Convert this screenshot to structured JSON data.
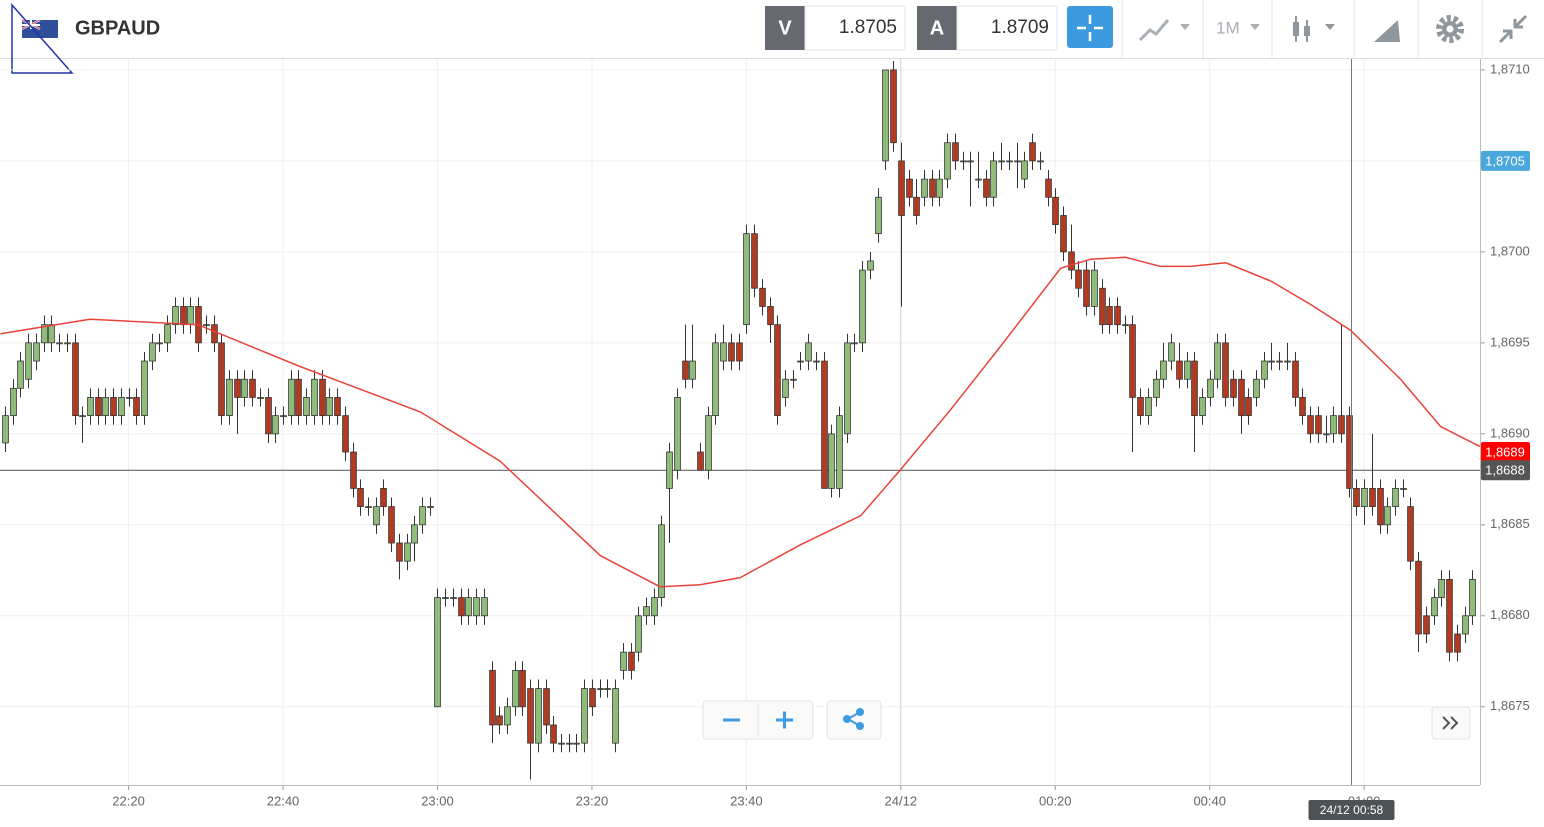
{
  "header": {
    "symbol": "GBPAUD",
    "bid_label": "V",
    "bid": "1.8705",
    "ask_label": "A",
    "ask": "1.8709",
    "timeframe": "1M"
  },
  "chart_data": {
    "type": "candlestick",
    "up_color": "#8fbd78",
    "down_color": "#b23a20",
    "candles": [
      [
        1.86895,
        1.86915,
        1.8689,
        1.8691
      ],
      [
        1.8691,
        1.8693,
        1.86905,
        1.86925
      ],
      [
        1.86925,
        1.86945,
        1.8692,
        1.8694
      ],
      [
        1.8693,
        1.86955,
        1.86925,
        1.8695
      ],
      [
        1.8694,
        1.86955,
        1.86935,
        1.8695
      ],
      [
        1.8695,
        1.86965,
        1.86945,
        1.8696
      ],
      [
        1.8695,
        1.86965,
        1.86945,
        1.8696
      ],
      [
        1.8695,
        1.86955,
        1.86945,
        1.8695
      ],
      [
        1.8695,
        1.86955,
        1.86945,
        1.8695
      ],
      [
        1.8695,
        1.86955,
        1.86905,
        1.8691
      ],
      [
        1.8691,
        1.86915,
        1.86895,
        1.8691
      ],
      [
        1.8691,
        1.86925,
        1.86905,
        1.8692
      ],
      [
        1.8692,
        1.86925,
        1.86905,
        1.8691
      ],
      [
        1.8691,
        1.86925,
        1.86905,
        1.8692
      ],
      [
        1.8692,
        1.86925,
        1.86905,
        1.8691
      ],
      [
        1.8691,
        1.86925,
        1.86905,
        1.8692
      ],
      [
        1.8692,
        1.86925,
        1.86915,
        1.8692
      ],
      [
        1.8692,
        1.86925,
        1.86905,
        1.8691
      ],
      [
        1.8691,
        1.86945,
        1.86905,
        1.8694
      ],
      [
        1.8694,
        1.86955,
        1.86935,
        1.8695
      ],
      [
        1.8695,
        1.86955,
        1.86945,
        1.8695
      ],
      [
        1.8695,
        1.86965,
        1.86945,
        1.8696
      ],
      [
        1.8696,
        1.86975,
        1.86955,
        1.8697
      ],
      [
        1.8697,
        1.86975,
        1.86955,
        1.8696
      ],
      [
        1.8696,
        1.86975,
        1.86955,
        1.8697
      ],
      [
        1.8697,
        1.86975,
        1.86945,
        1.8695
      ],
      [
        1.8696,
        1.86965,
        1.86955,
        1.8696
      ],
      [
        1.8696,
        1.86965,
        1.86945,
        1.8695
      ],
      [
        1.8695,
        1.86955,
        1.86905,
        1.8691
      ],
      [
        1.8691,
        1.86935,
        1.86905,
        1.8693
      ],
      [
        1.8693,
        1.86935,
        1.869,
        1.8692
      ],
      [
        1.8692,
        1.86935,
        1.86915,
        1.8693
      ],
      [
        1.8693,
        1.86935,
        1.86915,
        1.8692
      ],
      [
        1.8692,
        1.86925,
        1.86915,
        1.8692
      ],
      [
        1.8692,
        1.86925,
        1.86895,
        1.869
      ],
      [
        1.869,
        1.86915,
        1.86895,
        1.8691
      ],
      [
        1.8691,
        1.86915,
        1.86905,
        1.8691
      ],
      [
        1.8691,
        1.86935,
        1.86905,
        1.8693
      ],
      [
        1.8693,
        1.86935,
        1.86905,
        1.8691
      ],
      [
        1.8691,
        1.86925,
        1.86905,
        1.8692
      ],
      [
        1.8691,
        1.86935,
        1.86905,
        1.8693
      ],
      [
        1.8693,
        1.86935,
        1.86905,
        1.8691
      ],
      [
        1.8691,
        1.86925,
        1.86905,
        1.8692
      ],
      [
        1.8692,
        1.86925,
        1.86905,
        1.8691
      ],
      [
        1.8691,
        1.86915,
        1.86885,
        1.8689
      ],
      [
        1.8689,
        1.86895,
        1.86865,
        1.8687
      ],
      [
        1.8687,
        1.86875,
        1.86855,
        1.8686
      ],
      [
        1.8686,
        1.86865,
        1.86855,
        1.8686
      ],
      [
        1.8685,
        1.86865,
        1.86845,
        1.8686
      ],
      [
        1.8687,
        1.86875,
        1.86855,
        1.8686
      ],
      [
        1.8686,
        1.86865,
        1.86835,
        1.8684
      ],
      [
        1.8684,
        1.86845,
        1.8682,
        1.8683
      ],
      [
        1.8683,
        1.86845,
        1.86825,
        1.8684
      ],
      [
        1.8684,
        1.86855,
        1.8683,
        1.8685
      ],
      [
        1.8685,
        1.86865,
        1.86845,
        1.8686
      ],
      [
        1.8686,
        1.86865,
        1.86855,
        1.8686
      ],
      [
        1.8675,
        1.86815,
        1.8675,
        1.8681
      ],
      [
        1.8681,
        1.86815,
        1.86805,
        1.8681
      ],
      [
        1.8681,
        1.86815,
        1.86805,
        1.8681
      ],
      [
        1.8681,
        1.86815,
        1.86795,
        1.868
      ],
      [
        1.868,
        1.86815,
        1.86795,
        1.8681
      ],
      [
        1.868,
        1.86815,
        1.86795,
        1.8681
      ],
      [
        1.868,
        1.86815,
        1.86795,
        1.8681
      ],
      [
        1.8677,
        1.86775,
        1.8673,
        1.8674
      ],
      [
        1.86745,
        1.8675,
        1.86735,
        1.8674
      ],
      [
        1.8674,
        1.86755,
        1.86735,
        1.8675
      ],
      [
        1.8675,
        1.86775,
        1.86745,
        1.8677
      ],
      [
        1.8677,
        1.86775,
        1.86745,
        1.8675
      ],
      [
        1.8676,
        1.86765,
        1.8671,
        1.8673
      ],
      [
        1.8673,
        1.86765,
        1.86725,
        1.8676
      ],
      [
        1.8676,
        1.86765,
        1.86735,
        1.8674
      ],
      [
        1.8674,
        1.86745,
        1.86725,
        1.8673
      ],
      [
        1.8673,
        1.86735,
        1.86725,
        1.8673
      ],
      [
        1.8673,
        1.86735,
        1.86725,
        1.8673
      ],
      [
        1.8673,
        1.86735,
        1.86725,
        1.8673
      ],
      [
        1.8673,
        1.86765,
        1.86725,
        1.8676
      ],
      [
        1.8676,
        1.86765,
        1.86745,
        1.8675
      ],
      [
        1.8676,
        1.86765,
        1.86755,
        1.8676
      ],
      [
        1.8676,
        1.86765,
        1.86755,
        1.8676
      ],
      [
        1.8673,
        1.86765,
        1.86725,
        1.8676
      ],
      [
        1.8677,
        1.86785,
        1.86765,
        1.8678
      ],
      [
        1.8678,
        1.86785,
        1.86765,
        1.8677
      ],
      [
        1.8678,
        1.86805,
        1.86775,
        1.868
      ],
      [
        1.868,
        1.8681,
        1.86795,
        1.86805
      ],
      [
        1.868,
        1.86815,
        1.86795,
        1.8681
      ],
      [
        1.8681,
        1.86855,
        1.86805,
        1.8685
      ],
      [
        1.8687,
        1.86895,
        1.8684,
        1.8689
      ],
      [
        1.8688,
        1.86925,
        1.86875,
        1.8692
      ],
      [
        1.8694,
        1.8696,
        1.86925,
        1.8693
      ],
      [
        1.8693,
        1.8696,
        1.86925,
        1.8694
      ],
      [
        1.8689,
        1.86895,
        1.8688,
        1.8688
      ],
      [
        1.8688,
        1.86915,
        1.86875,
        1.8691
      ],
      [
        1.8691,
        1.86955,
        1.86905,
        1.8695
      ],
      [
        1.8694,
        1.8696,
        1.86935,
        1.8695
      ],
      [
        1.8695,
        1.86955,
        1.86935,
        1.8694
      ],
      [
        1.8695,
        1.86955,
        1.86935,
        1.8694
      ],
      [
        1.8696,
        1.87015,
        1.86955,
        1.8701
      ],
      [
        1.8701,
        1.87015,
        1.86975,
        1.8698
      ],
      [
        1.8698,
        1.86985,
        1.86965,
        1.8697
      ],
      [
        1.8697,
        1.86975,
        1.8695,
        1.8696
      ],
      [
        1.8696,
        1.86965,
        1.86905,
        1.8691
      ],
      [
        1.8692,
        1.86935,
        1.86915,
        1.8693
      ],
      [
        1.8693,
        1.86935,
        1.86925,
        1.8693
      ],
      [
        1.8694,
        1.86945,
        1.86935,
        1.8694
      ],
      [
        1.8694,
        1.86955,
        1.86935,
        1.8695
      ],
      [
        1.8694,
        1.86945,
        1.86935,
        1.8694
      ],
      [
        1.8694,
        1.86945,
        1.8687,
        1.8687
      ],
      [
        1.8687,
        1.86905,
        1.86865,
        1.869
      ],
      [
        1.8687,
        1.86915,
        1.86865,
        1.8691
      ],
      [
        1.869,
        1.86955,
        1.86895,
        1.8695
      ],
      [
        1.8695,
        1.86955,
        1.86945,
        1.8695
      ],
      [
        1.8695,
        1.86995,
        1.86945,
        1.8699
      ],
      [
        1.8699,
        1.87,
        1.86985,
        1.86995
      ],
      [
        1.8701,
        1.87035,
        1.87005,
        1.8703
      ],
      [
        1.8705,
        1.871,
        1.87045,
        1.871
      ],
      [
        1.871,
        1.87105,
        1.87055,
        1.8706
      ],
      [
        1.8705,
        1.8706,
        1.8697,
        1.8702
      ],
      [
        1.8704,
        1.87045,
        1.87025,
        1.8703
      ],
      [
        1.8703,
        1.8704,
        1.87015,
        1.8702
      ],
      [
        1.8703,
        1.87045,
        1.87025,
        1.8704
      ],
      [
        1.8704,
        1.87045,
        1.87025,
        1.8703
      ],
      [
        1.8703,
        1.87045,
        1.87025,
        1.8704
      ],
      [
        1.8704,
        1.87065,
        1.87035,
        1.8706
      ],
      [
        1.8706,
        1.87065,
        1.87045,
        1.8705
      ],
      [
        1.8705,
        1.87055,
        1.87045,
        1.8705
      ],
      [
        1.8705,
        1.87055,
        1.87025,
        1.8705
      ],
      [
        1.8704,
        1.87055,
        1.87035,
        1.8704
      ],
      [
        1.8704,
        1.87045,
        1.87025,
        1.8703
      ],
      [
        1.8703,
        1.87055,
        1.87025,
        1.8705
      ],
      [
        1.8705,
        1.8706,
        1.87045,
        1.8705
      ],
      [
        1.8705,
        1.87055,
        1.87045,
        1.8705
      ],
      [
        1.8705,
        1.8706,
        1.87035,
        1.8705
      ],
      [
        1.8704,
        1.87055,
        1.87035,
        1.8705
      ],
      [
        1.8706,
        1.87065,
        1.87045,
        1.8705
      ],
      [
        1.8705,
        1.87055,
        1.87045,
        1.8705
      ],
      [
        1.8704,
        1.87045,
        1.87025,
        1.8703
      ],
      [
        1.8703,
        1.87035,
        1.8701,
        1.87015
      ],
      [
        1.8702,
        1.87025,
        1.86995,
        1.87
      ],
      [
        1.87,
        1.87015,
        1.86985,
        1.8699
      ],
      [
        1.8699,
        1.86995,
        1.86975,
        1.8698
      ],
      [
        1.8699,
        1.86995,
        1.86965,
        1.8697
      ],
      [
        1.8697,
        1.86995,
        1.86965,
        1.8699
      ],
      [
        1.8698,
        1.86985,
        1.86955,
        1.8696
      ],
      [
        1.8697,
        1.86975,
        1.86955,
        1.8696
      ],
      [
        1.8697,
        1.86975,
        1.86955,
        1.8696
      ],
      [
        1.8696,
        1.86965,
        1.86955,
        1.8696
      ],
      [
        1.8696,
        1.86965,
        1.8689,
        1.8692
      ],
      [
        1.8692,
        1.86925,
        1.86905,
        1.8691
      ],
      [
        1.8691,
        1.86925,
        1.86905,
        1.8692
      ],
      [
        1.8692,
        1.86935,
        1.86915,
        1.8693
      ],
      [
        1.8693,
        1.8695,
        1.86925,
        1.8694
      ],
      [
        1.8694,
        1.86955,
        1.86935,
        1.8695
      ],
      [
        1.8694,
        1.8695,
        1.86925,
        1.8693
      ],
      [
        1.8693,
        1.86945,
        1.86925,
        1.8694
      ],
      [
        1.8694,
        1.86945,
        1.8689,
        1.8691
      ],
      [
        1.8691,
        1.86925,
        1.86905,
        1.8692
      ],
      [
        1.8692,
        1.86935,
        1.86915,
        1.8693
      ],
      [
        1.8693,
        1.86955,
        1.86925,
        1.8695
      ],
      [
        1.8695,
        1.86955,
        1.86915,
        1.8692
      ],
      [
        1.8693,
        1.86935,
        1.86915,
        1.8692
      ],
      [
        1.8693,
        1.86935,
        1.869,
        1.8691
      ],
      [
        1.8692,
        1.86925,
        1.86905,
        1.8691
      ],
      [
        1.8692,
        1.86935,
        1.86915,
        1.8693
      ],
      [
        1.8693,
        1.86945,
        1.86925,
        1.8694
      ],
      [
        1.8694,
        1.8695,
        1.86935,
        1.8694
      ],
      [
        1.8694,
        1.86945,
        1.86935,
        1.8694
      ],
      [
        1.8694,
        1.8695,
        1.86935,
        1.8694
      ],
      [
        1.8694,
        1.86945,
        1.86915,
        1.8692
      ],
      [
        1.8692,
        1.86925,
        1.86905,
        1.8691
      ],
      [
        1.8691,
        1.86915,
        1.86895,
        1.869
      ],
      [
        1.8691,
        1.86915,
        1.86895,
        1.869
      ],
      [
        1.869,
        1.8691,
        1.86895,
        1.869
      ],
      [
        1.869,
        1.86915,
        1.86895,
        1.8691
      ],
      [
        1.8691,
        1.8696,
        1.86895,
        1.869
      ],
      [
        1.8691,
        1.86915,
        1.86865,
        1.8687
      ],
      [
        1.8687,
        1.86875,
        1.86855,
        1.8686
      ],
      [
        1.8686,
        1.86875,
        1.8685,
        1.8687
      ],
      [
        1.8687,
        1.869,
        1.86855,
        1.8686
      ],
      [
        1.8687,
        1.86875,
        1.86845,
        1.8685
      ],
      [
        1.8685,
        1.86865,
        1.86845,
        1.8686
      ],
      [
        1.8686,
        1.86875,
        1.86855,
        1.8687
      ],
      [
        1.8687,
        1.86875,
        1.86865,
        1.8687
      ],
      [
        1.8686,
        1.86865,
        1.86825,
        1.8683
      ],
      [
        1.8683,
        1.86835,
        1.8678,
        1.8679
      ],
      [
        1.868,
        1.86805,
        1.86785,
        1.8679
      ],
      [
        1.868,
        1.86815,
        1.86795,
        1.8681
      ],
      [
        1.8681,
        1.86825,
        1.86805,
        1.8682
      ],
      [
        1.8682,
        1.86825,
        1.86775,
        1.8678
      ],
      [
        1.8679,
        1.86795,
        1.86775,
        1.8678
      ],
      [
        1.8679,
        1.86805,
        1.86785,
        1.868
      ],
      [
        1.868,
        1.86825,
        1.86795,
        1.8682
      ]
    ],
    "ma": {
      "color": "#e8433a",
      "x": [
        -0.6,
        11,
        25,
        38.2,
        53.8,
        64.1,
        77.1,
        84.8,
        90,
        95.2,
        103,
        110.8,
        115.9,
        122.4,
        128.9,
        136.7,
        140.6,
        145.1,
        149.6,
        153.5,
        158.1,
        163.9,
        169.1,
        174.2,
        180.7,
        185.9,
        191
      ],
      "values": [
        1.86955,
        1.86963,
        1.8696,
        1.86937,
        1.86912,
        1.86885,
        1.86833,
        1.86816,
        1.86817,
        1.86821,
        1.86839,
        1.86855,
        1.8688,
        1.86913,
        1.86948,
        1.86991,
        1.86996,
        1.86997,
        1.86992,
        1.86992,
        1.86994,
        1.86984,
        1.86971,
        1.86957,
        1.8693,
        1.86904,
        1.86893
      ]
    },
    "xlim": [
      -0.65,
      191.0
    ],
    "ylim": [
      1.86707,
      1.87106
    ],
    "xticks": [
      {
        "value": 16,
        "label": "22:20"
      },
      {
        "value": 36,
        "label": "22:40"
      },
      {
        "value": 56,
        "label": "23:00"
      },
      {
        "value": 76,
        "label": "23:20"
      },
      {
        "value": 96,
        "label": "23:40"
      },
      {
        "value": 116,
        "label": "24/12"
      },
      {
        "value": 136,
        "label": "00:20"
      },
      {
        "value": 156,
        "label": "00:40"
      },
      {
        "value": 176,
        "label": "01:00"
      }
    ],
    "yticks": [
      {
        "value": 1.8675,
        "label": "1,8675"
      },
      {
        "value": 1.868,
        "label": "1,8680"
      },
      {
        "value": 1.8685,
        "label": "1,8685"
      },
      {
        "value": 1.869,
        "label": "1,8690"
      },
      {
        "value": 1.8695,
        "label": "1,8695"
      },
      {
        "value": 1.87,
        "label": "1,8700"
      },
      {
        "value": 1.8705,
        "label": "1,8705"
      },
      {
        "value": 1.871,
        "label": "1,8710"
      }
    ],
    "grid": true,
    "price_line": {
      "value": 1.8688,
      "label": "1,8688",
      "color": "#555555"
    },
    "price_tags": [
      {
        "value": 1.8705,
        "label": "1,8705",
        "color": "#4aa8dc"
      },
      {
        "value": 1.8689,
        "label": "1,8689",
        "color": "#ff0000"
      }
    ],
    "crosshair_label": "24/12 00:58"
  }
}
